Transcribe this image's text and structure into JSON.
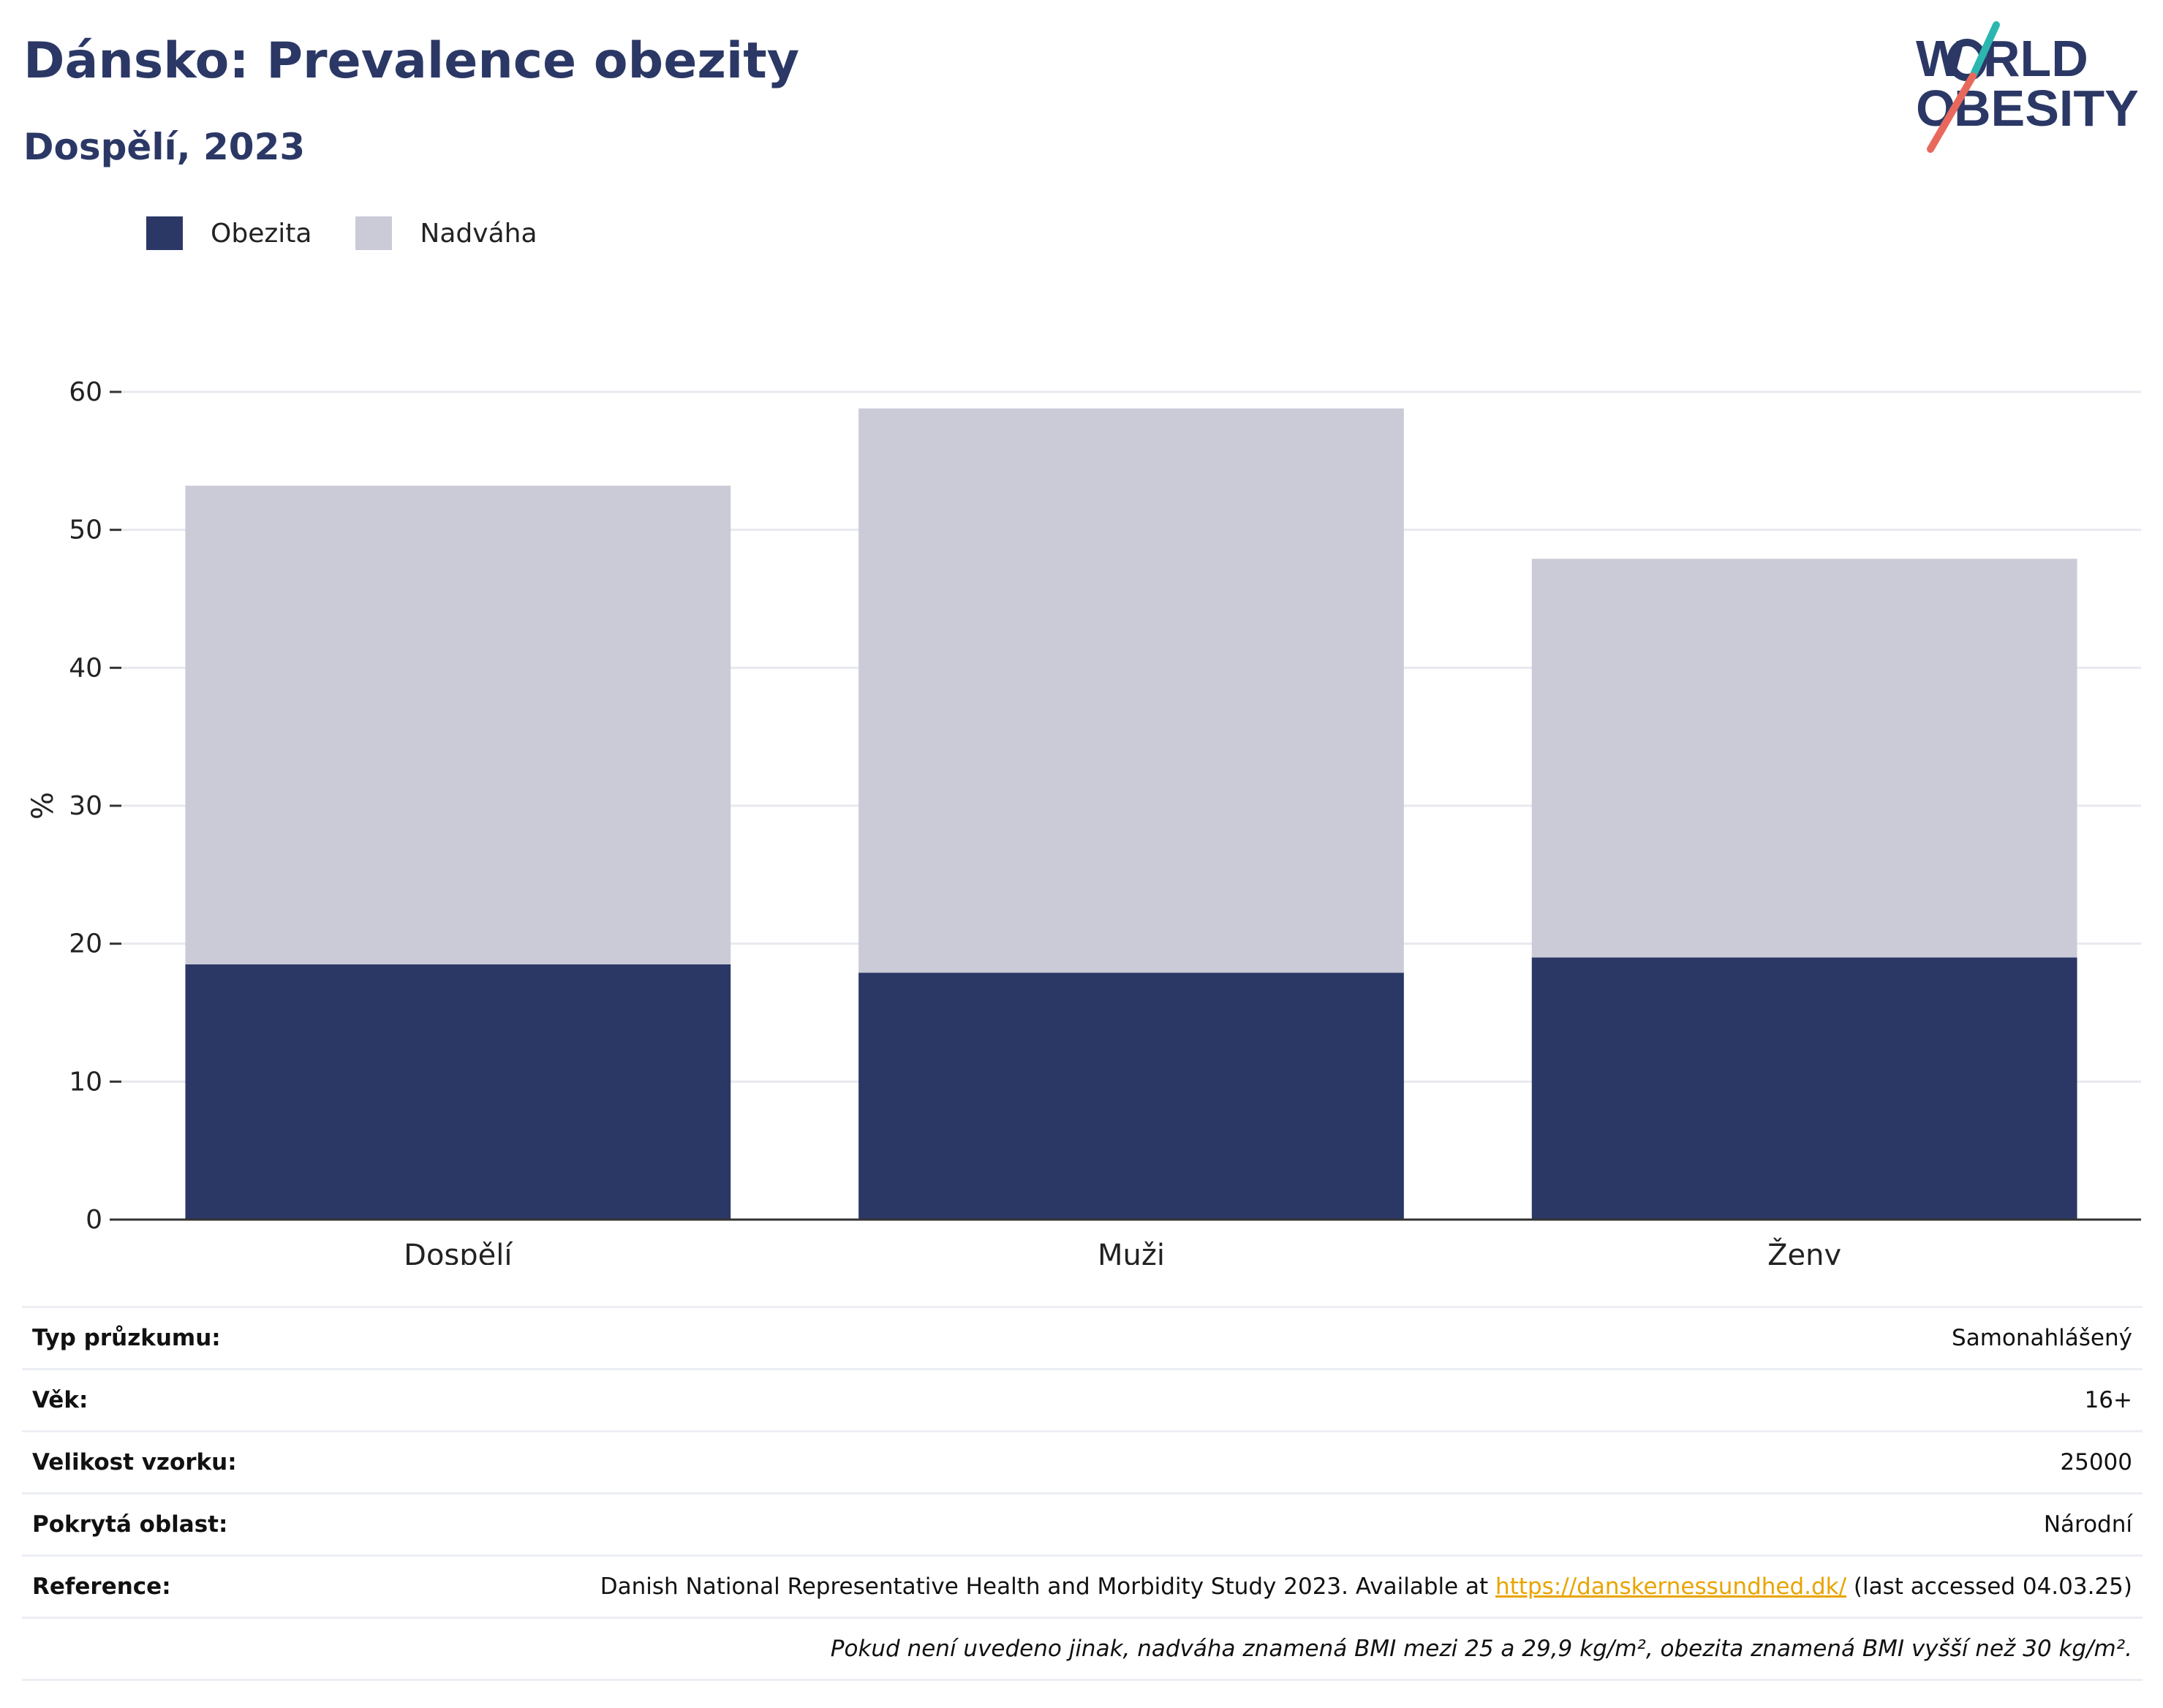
{
  "header": {
    "title": "Dánsko: Prevalence obezity",
    "subtitle": "Dospělí, 2023"
  },
  "logo": {
    "line1": "WORLD",
    "line2": "OBESITY"
  },
  "colors": {
    "obezita": "#2b3866",
    "nadvaha": "#cacbd7",
    "title": "#2b3866",
    "link": "#e9a400"
  },
  "legend": {
    "obezita": "Obezita",
    "nadvaha": "Nadváha"
  },
  "chart_data": {
    "type": "bar",
    "stacked": true,
    "categories": [
      "Dospělí",
      "Muži",
      "Ženy"
    ],
    "series": [
      {
        "name": "Obezita",
        "values": [
          18.5,
          17.9,
          19.0
        ]
      },
      {
        "name": "Nadváha",
        "values": [
          34.7,
          40.9,
          28.9
        ]
      }
    ],
    "ylabel": "%",
    "ylim": [
      0,
      60
    ],
    "yticks": [
      0,
      10,
      20,
      30,
      40,
      50,
      60
    ],
    "grid": true,
    "legend_position": "top-left"
  },
  "meta": [
    {
      "key": "Typ průzkumu:",
      "value": "Samonahlášený"
    },
    {
      "key": "Věk:",
      "value": "16+"
    },
    {
      "key": "Velikost vzorku:",
      "value": "25000"
    },
    {
      "key": "Pokrytá oblast:",
      "value": "Národní"
    }
  ],
  "reference": {
    "key": "Reference:",
    "text_before": "Danish National Representative Health and Morbidity Study 2023. Available at ",
    "link": "https://danskernessundhed.dk/",
    "text_after": " (last accessed 04.03.25)"
  },
  "note": "Pokud není uvedeno jinak, nadváha znamená BMI mezi 25 a 29,9 kg/m², obezita znamená BMI vyšší než 30 kg/m²."
}
